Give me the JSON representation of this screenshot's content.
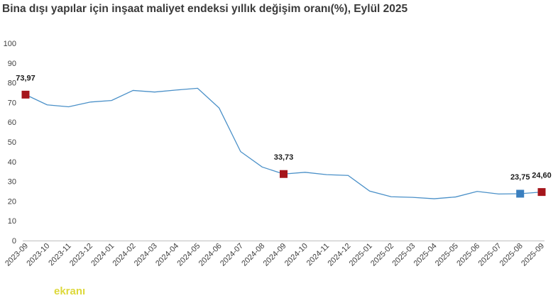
{
  "title": "Bina dışı yapılar için inşaat maliyet endeksi yıllık değişim oranı(%), Eylül 2025",
  "watermark": "ekranı",
  "colors": {
    "line": "#4a90c8",
    "marker_red": "#a5151b",
    "marker_blue": "#3a7fbf",
    "axis": "#bfbfbf"
  },
  "chart_data": {
    "type": "line",
    "title": "Bina dışı yapılar için inşaat maliyet endeksi yıllık değişim oranı(%), Eylül 2025",
    "xlabel": "",
    "ylabel": "",
    "ylim": [
      0,
      100
    ],
    "yticks": [
      0,
      10,
      20,
      30,
      40,
      50,
      60,
      70,
      80,
      90,
      100
    ],
    "grid": false,
    "categories": [
      "2023-09",
      "2023-10",
      "2023-11",
      "2023-12",
      "2024-01",
      "2024-02",
      "2024-03",
      "2024-04",
      "2024-05",
      "2024-06",
      "2024-07",
      "2024-08",
      "2024-09",
      "2024-10",
      "2024-11",
      "2024-12",
      "2025-01",
      "2025-02",
      "2025-03",
      "2025-04",
      "2025-05",
      "2025-06",
      "2025-07",
      "2025-08",
      "2025-09"
    ],
    "series": [
      {
        "values": [
          73.97,
          68.8,
          67.8,
          70.2,
          71.0,
          76.1,
          75.3,
          76.3,
          77.2,
          67.2,
          45.1,
          37.3,
          33.73,
          34.6,
          33.4,
          33.0,
          25.1,
          22.2,
          21.9,
          21.2,
          22.1,
          24.9,
          23.6,
          23.75,
          24.6
        ]
      }
    ],
    "highlighted_points": [
      {
        "category": "2023-09",
        "value": 73.97,
        "label": "73,97",
        "color": "#a5151b"
      },
      {
        "category": "2024-09",
        "value": 33.73,
        "label": "33,73",
        "color": "#a5151b"
      },
      {
        "category": "2025-08",
        "value": 23.75,
        "label": "23,75",
        "color": "#3a7fbf"
      },
      {
        "category": "2025-09",
        "value": 24.6,
        "label": "24,60",
        "color": "#a5151b"
      }
    ]
  }
}
